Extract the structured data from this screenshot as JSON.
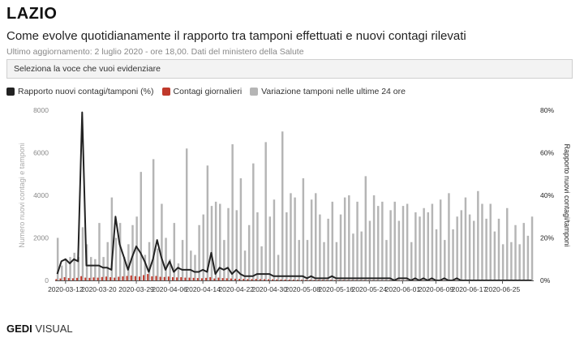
{
  "header": {
    "title": "LAZIO",
    "subtitle": "Come evolve quotidianamente il rapporto tra tamponi effettuati e nuovi contagi rilevati",
    "updated": "Ultimo aggiornamento: 2 luglio 2020 - ore 18,00. Dati del ministero della Salute"
  },
  "selector": {
    "placeholder": "Seleziona la voce che vuoi evidenziare"
  },
  "colors": {
    "ratio_line": "#222222",
    "cases_bar": "#c0392b",
    "tests_bar": "#b5b5b5",
    "left_axis": "#aaaaaa",
    "right_axis": "#222222"
  },
  "brand": {
    "logo_bold": "GEDI",
    "logo_rest": "VISUAL"
  },
  "chart_data": {
    "type": "bar",
    "xlabel": "",
    "ylabel": "Numero nuovi contagi e tamponi",
    "ylabel_right": "Rapporto nuovi contagi/tamponi",
    "ylim": [
      0,
      8000
    ],
    "ylim_right": [
      0,
      80
    ],
    "y_ticks": [
      "0",
      "2000",
      "4000",
      "6000",
      "8000"
    ],
    "y_ticks_right": [
      "0%",
      "20%",
      "40%",
      "60%",
      "80%"
    ],
    "x_ticks": [
      "2020-03-12",
      "2020-03-20",
      "2020-03-29",
      "2020-04-06",
      "2020-04-14",
      "2020-04-22",
      "2020-04-30",
      "2020-05-08",
      "2020-05-16",
      "2020-05-24",
      "2020-06-01",
      "2020-06-09",
      "2020-06-17",
      "2020-06-25"
    ],
    "start_date": "2020-03-10",
    "end_date": "2020-07-02",
    "legend_position": "top-left",
    "series": [
      {
        "name": "Rapporto nuovi contagi/tamponi (%)",
        "kind": "line",
        "axis": "right",
        "values": [
          3,
          9,
          10,
          8,
          10,
          9,
          79,
          7,
          7,
          7,
          7,
          6,
          6,
          5,
          30,
          17,
          11,
          5,
          11,
          16,
          13,
          9,
          4,
          10,
          19,
          11,
          5,
          9,
          4,
          6,
          5,
          5,
          5,
          4,
          4,
          5,
          4,
          13,
          3,
          6,
          5,
          6,
          3,
          5,
          3,
          2,
          2,
          2,
          3,
          3,
          3,
          3,
          2,
          2,
          2,
          2,
          2,
          2,
          2,
          2,
          1,
          2,
          1,
          1,
          1,
          1,
          2,
          1,
          1,
          1,
          1,
          1,
          1,
          1,
          1,
          1,
          1,
          1,
          1,
          1,
          1,
          0,
          1,
          1,
          1,
          0,
          1,
          0,
          1,
          0,
          1,
          0,
          0,
          1,
          0,
          0,
          1,
          0,
          0,
          0,
          0,
          0,
          0,
          0,
          0,
          0,
          0,
          0,
          0,
          0,
          0,
          0,
          0,
          0,
          0
        ]
      },
      {
        "name": "Contagi giornalieri",
        "kind": "bar",
        "axis": "left",
        "values": [
          60,
          90,
          150,
          110,
          100,
          120,
          200,
          130,
          120,
          140,
          130,
          160,
          180,
          150,
          130,
          170,
          190,
          210,
          230,
          200,
          180,
          250,
          300,
          190,
          210,
          170,
          160,
          180,
          150,
          140,
          150,
          130,
          130,
          120,
          110,
          100,
          120,
          150,
          90,
          130,
          110,
          100,
          90,
          80,
          70,
          70,
          60,
          60,
          70,
          60,
          55,
          50,
          50,
          45,
          40,
          40,
          35,
          35,
          30,
          30,
          30,
          30,
          25,
          25,
          25,
          20,
          25,
          20,
          20,
          20,
          15,
          15,
          15,
          15,
          15,
          12,
          12,
          12,
          10,
          10,
          10,
          10,
          10,
          10,
          8,
          8,
          8,
          8,
          8,
          8,
          8,
          6,
          6,
          6,
          6,
          6,
          6,
          6,
          6,
          5,
          5,
          5,
          5,
          5,
          5,
          5,
          5,
          5,
          5,
          5,
          5,
          5,
          5,
          5,
          5
        ]
      },
      {
        "name": "Variazione tamponi nelle ultime 24 ore",
        "kind": "bar",
        "axis": "left",
        "values": [
          2000,
          700,
          1000,
          1100,
          1300,
          1100,
          2500,
          1700,
          1100,
          1000,
          2700,
          1100,
          1800,
          3900,
          2000,
          2700,
          1100,
          1700,
          2600,
          3000,
          5100,
          1200,
          1800,
          5700,
          1500,
          3600,
          2000,
          1000,
          2700,
          800,
          1900,
          6200,
          1400,
          1200,
          2600,
          3100,
          5400,
          3500,
          3700,
          3600,
          1900,
          3400,
          6400,
          3300,
          4800,
          1400,
          2600,
          5500,
          3200,
          1600,
          6500,
          3000,
          3800,
          1200,
          7000,
          3200,
          4100,
          3900,
          1900,
          4800,
          1900,
          3800,
          4100,
          3100,
          1800,
          2900,
          3700,
          1800,
          3100,
          3900,
          4000,
          2200,
          3700,
          2300,
          4900,
          2800,
          4000,
          3500,
          3700,
          1900,
          3300,
          3700,
          2800,
          3500,
          3600,
          1800,
          3200,
          3000,
          3400,
          3200,
          3600,
          2400,
          3800,
          1900,
          4100,
          2400,
          3000,
          3300,
          3900,
          3100,
          2800,
          4200,
          3600,
          2900,
          3600,
          2300,
          2900,
          1700,
          3400,
          1800,
          2600,
          1700,
          2700,
          2100,
          3000
        ]
      }
    ]
  }
}
